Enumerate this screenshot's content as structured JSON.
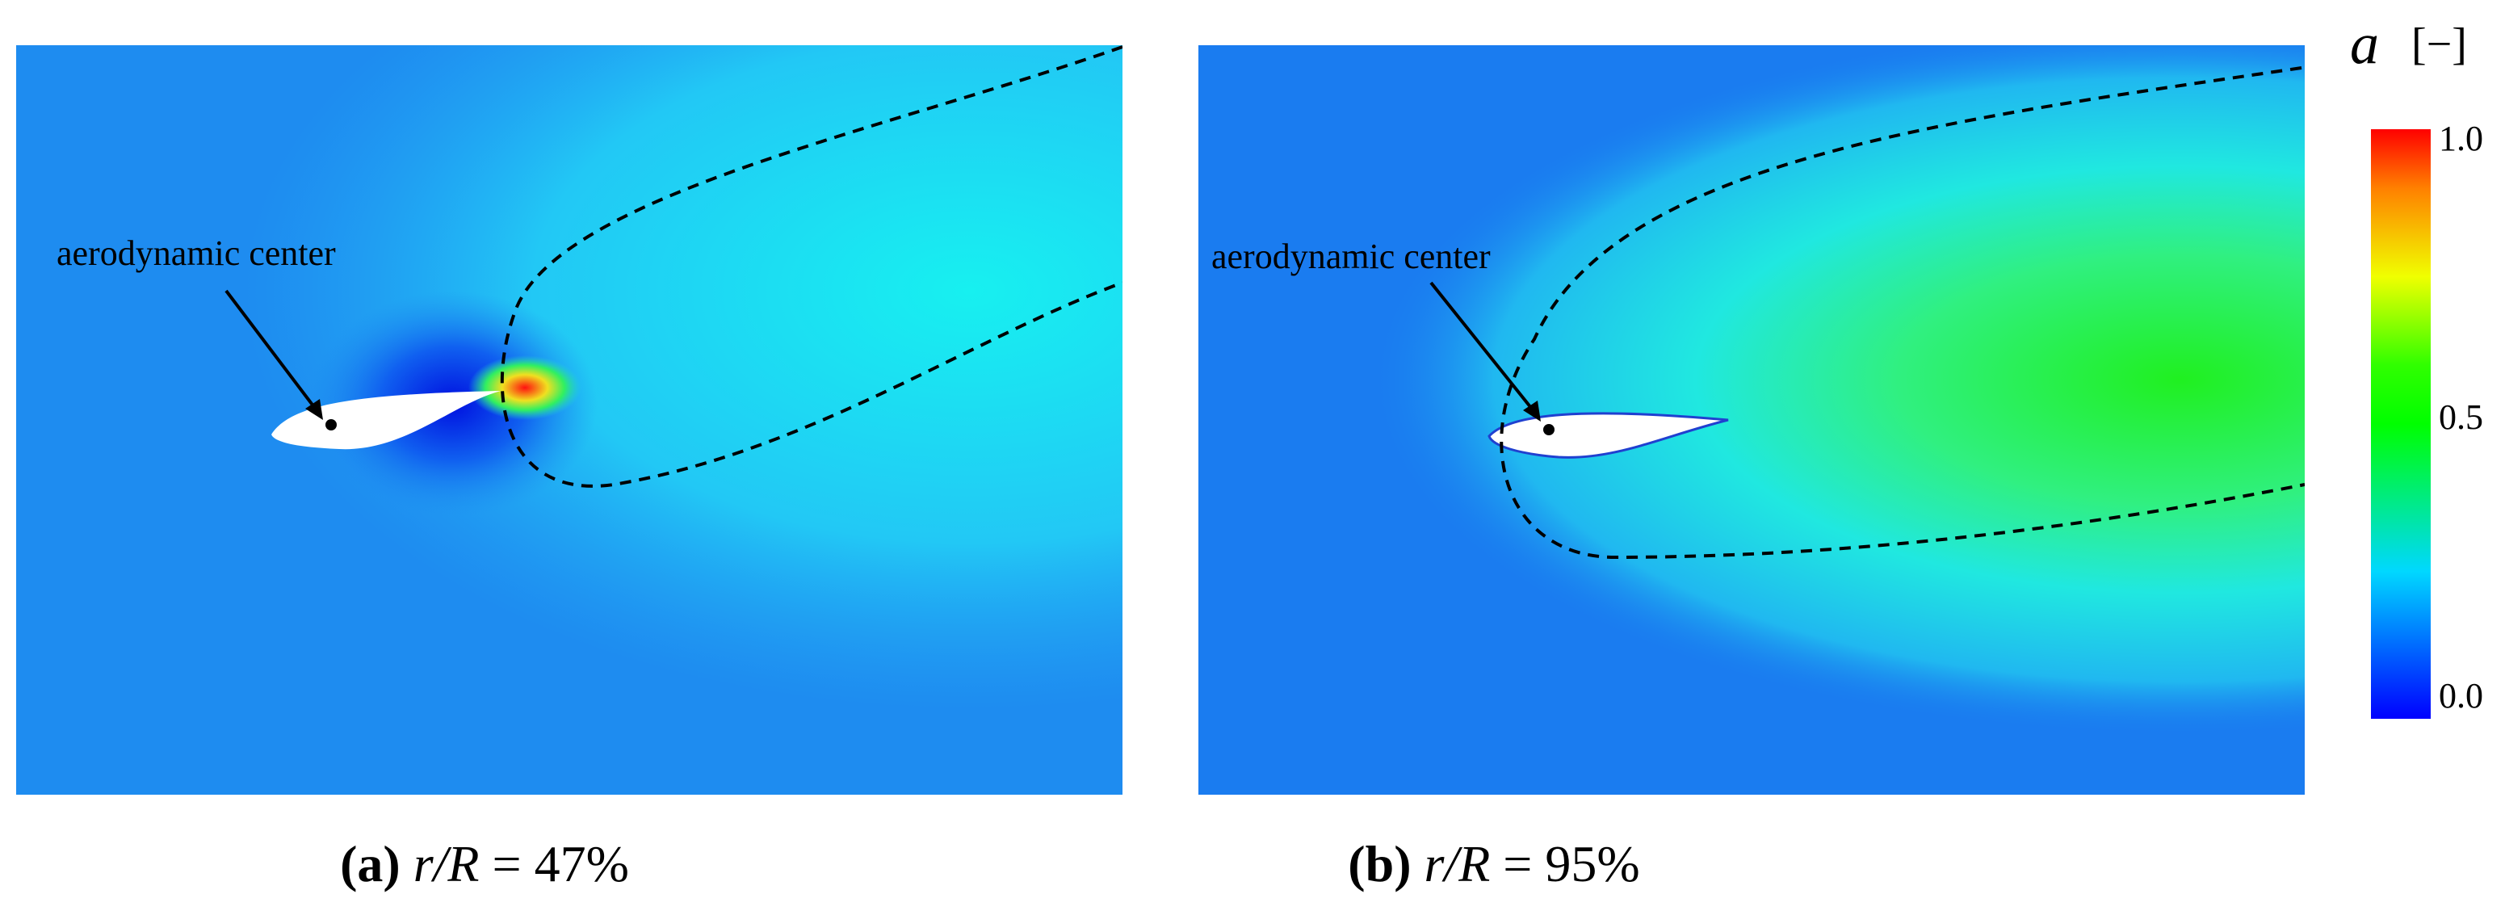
{
  "colorbar": {
    "title": "a",
    "unit": "[−]",
    "range": [
      0,
      1
    ],
    "ticks": [
      {
        "value": 0,
        "label": "0.0"
      },
      {
        "value": 0.5,
        "label": "0.5"
      },
      {
        "value": 1,
        "label": "1.0"
      }
    ]
  },
  "panels": [
    {
      "label": "(a)",
      "variable": "r/R",
      "value": "= 47%",
      "annotation": "aerodynamic center"
    },
    {
      "label": "(b)",
      "variable": "r/R",
      "value": "= 95%",
      "annotation": "aerodynamic center"
    }
  ]
}
